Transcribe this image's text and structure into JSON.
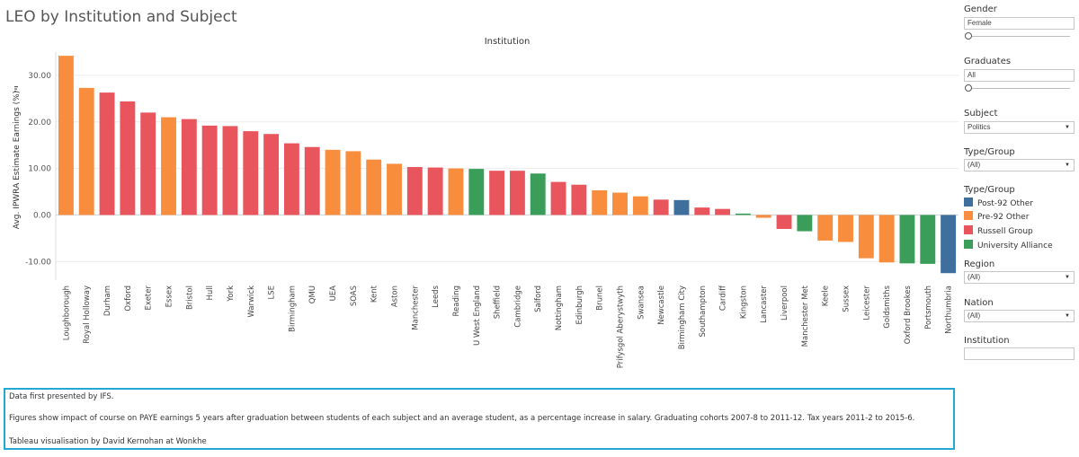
{
  "title": "LEO by Institution and Subject",
  "filters": {
    "gender": {
      "label": "Gender",
      "value": "Female"
    },
    "graduates": {
      "label": "Graduates",
      "value": "All"
    },
    "subject": {
      "label": "Subject",
      "value": "Politics"
    },
    "type_group": {
      "label": "Type/Group",
      "value": "(All)"
    },
    "region": {
      "label": "Region",
      "value": "(All)"
    },
    "nation": {
      "label": "Nation",
      "value": "(All)"
    },
    "institution": {
      "label": "Institution",
      "value": ""
    }
  },
  "legend": {
    "title": "Type/Group",
    "items": [
      {
        "label": "Post-92 Other",
        "color": "#3e6f9d"
      },
      {
        "label": "Pre-92 Other",
        "color": "#f98d3e"
      },
      {
        "label": "Russell Group",
        "color": "#e8555c"
      },
      {
        "label": "University Alliance",
        "color": "#3a9d5a"
      }
    ]
  },
  "notes": {
    "line1": "Data first presented by IFS.",
    "line2": "Figures show impact of course on PAYE earnings 5 years after graduation between students of each subject and an average student, as a percentage increase in salary. Graduating cohorts 2007-8 to 2011-12. Tax years 2011-2 to 2015-6.",
    "line3": "Tableau visualisation by David Kernohan at Wonkhe"
  },
  "chart_data": {
    "type": "bar",
    "title": "Institution",
    "ylabel": "Avg. IPWRA Estimate Earnings (%)",
    "ylim": [
      -14,
      35
    ],
    "yticks": [
      -10,
      0,
      10,
      20,
      30
    ],
    "ytick_labels": [
      "-10.00",
      "0.00",
      "10.00",
      "20.00",
      "30.00"
    ],
    "grid": true,
    "legend_position": "right",
    "categories": [
      "Loughborough",
      "Royal Holloway",
      "Durham",
      "Oxford",
      "Exeter",
      "Essex",
      "Bristol",
      "Hull",
      "York",
      "Warwick",
      "LSE",
      "Birmingham",
      "QMU",
      "UEA",
      "SOAS",
      "Kent",
      "Aston",
      "Manchester",
      "Leeds",
      "Reading",
      "U West England",
      "Sheffield",
      "Cambridge",
      "Salford",
      "Nottingham",
      "Edinburgh",
      "Brunel",
      "Prifysgol Aberystwyth",
      "Swansea",
      "Newcastle",
      "Birmingham City",
      "Southampton",
      "Cardiff",
      "Kingston",
      "Lancaster",
      "Liverpool",
      "Manchester Met",
      "Keele",
      "Sussex",
      "Leicester",
      "Goldsmiths",
      "Oxford Brookes",
      "Portsmouth",
      "Northumbria"
    ],
    "values": [
      34.2,
      27.3,
      26.3,
      24.4,
      22.0,
      21.0,
      20.6,
      19.2,
      19.1,
      18.0,
      17.4,
      15.4,
      14.6,
      14.0,
      13.7,
      11.9,
      11.0,
      10.3,
      10.2,
      10.0,
      9.9,
      9.5,
      9.5,
      8.9,
      7.1,
      6.5,
      5.3,
      4.8,
      4.0,
      3.3,
      3.2,
      1.6,
      1.3,
      0.3,
      -0.6,
      -3.0,
      -3.5,
      -5.5,
      -5.8,
      -9.3,
      -10.2,
      -10.4,
      -10.5,
      -12.5
    ],
    "groups": [
      "Pre-92 Other",
      "Pre-92 Other",
      "Russell Group",
      "Russell Group",
      "Russell Group",
      "Pre-92 Other",
      "Russell Group",
      "Russell Group",
      "Russell Group",
      "Russell Group",
      "Russell Group",
      "Russell Group",
      "Russell Group",
      "Pre-92 Other",
      "Pre-92 Other",
      "Pre-92 Other",
      "Pre-92 Other",
      "Russell Group",
      "Russell Group",
      "Pre-92 Other",
      "University Alliance",
      "Russell Group",
      "Russell Group",
      "University Alliance",
      "Russell Group",
      "Russell Group",
      "Pre-92 Other",
      "Pre-92 Other",
      "Pre-92 Other",
      "Russell Group",
      "Post-92 Other",
      "Russell Group",
      "Russell Group",
      "University Alliance",
      "Pre-92 Other",
      "Russell Group",
      "University Alliance",
      "Pre-92 Other",
      "Pre-92 Other",
      "Pre-92 Other",
      "Pre-92 Other",
      "University Alliance",
      "University Alliance",
      "Post-92 Other"
    ]
  }
}
